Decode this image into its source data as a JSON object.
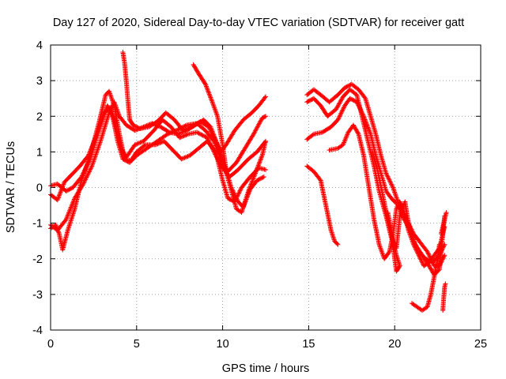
{
  "chart_data": {
    "type": "scatter",
    "title": "Day 127 of 2020, Sidereal Day-to-day VTEC variation (SDTVAR) for receiver gatt",
    "xlabel": "GPS time / hours",
    "ylabel": "SDTVAR / TECUs",
    "xlim": [
      0,
      25
    ],
    "ylim": [
      -4,
      4
    ],
    "xticks": [
      "0",
      "5",
      "10",
      "15",
      "20",
      "25"
    ],
    "yticks": [
      "-4",
      "-3",
      "-2",
      "-1",
      "0",
      "1",
      "2",
      "3",
      "4"
    ],
    "grid": true,
    "marker": "+",
    "series_color": "#ff0000",
    "tracks": [
      [
        [
          0.0,
          -1.15
        ],
        [
          0.3,
          -1.05
        ],
        [
          0.5,
          -1.3
        ],
        [
          0.7,
          -1.75
        ],
        [
          1.0,
          -1.2
        ],
        [
          1.4,
          -0.6
        ],
        [
          1.8,
          0.2
        ],
        [
          2.3,
          0.9
        ],
        [
          2.8,
          1.8
        ],
        [
          3.2,
          2.6
        ],
        [
          3.4,
          2.7
        ],
        [
          3.7,
          2.3
        ],
        [
          4.0,
          1.5
        ],
        [
          4.3,
          0.8
        ],
        [
          4.7,
          0.75
        ],
        [
          5.0,
          0.9
        ],
        [
          5.6,
          1.1
        ],
        [
          6.2,
          1.3
        ],
        [
          6.8,
          1.5
        ],
        [
          7.3,
          1.6
        ],
        [
          7.9,
          1.75
        ],
        [
          8.5,
          1.8
        ],
        [
          9.0,
          1.6
        ],
        [
          9.5,
          1.3
        ],
        [
          9.9,
          0.8
        ],
        [
          10.3,
          0.45
        ],
        [
          10.8,
          0.7
        ],
        [
          11.3,
          1.1
        ],
        [
          11.8,
          1.5
        ],
        [
          12.3,
          1.95
        ],
        [
          12.5,
          2.0
        ]
      ],
      [
        [
          0.0,
          -0.2
        ],
        [
          0.4,
          -0.35
        ],
        [
          0.8,
          0.15
        ],
        [
          1.2,
          0.35
        ],
        [
          1.7,
          0.6
        ],
        [
          2.2,
          0.9
        ],
        [
          2.7,
          1.5
        ],
        [
          3.1,
          2.1
        ],
        [
          3.5,
          2.25
        ],
        [
          3.8,
          1.7
        ],
        [
          4.1,
          1.1
        ],
        [
          4.4,
          0.85
        ],
        [
          4.9,
          1.2
        ],
        [
          5.4,
          1.3
        ],
        [
          6.0,
          1.6
        ],
        [
          6.5,
          1.9
        ],
        [
          7.0,
          1.7
        ],
        [
          7.5,
          1.4
        ],
        [
          8.0,
          1.5
        ],
        [
          8.5,
          1.55
        ],
        [
          9.1,
          1.4
        ],
        [
          9.6,
          0.9
        ],
        [
          10.0,
          0.55
        ],
        [
          10.4,
          0.3
        ],
        [
          10.9,
          0.5
        ],
        [
          11.5,
          0.8
        ],
        [
          12.0,
          1.0
        ],
        [
          12.5,
          1.3
        ]
      ],
      [
        [
          0.0,
          0.05
        ],
        [
          0.4,
          0.1
        ],
        [
          0.9,
          -0.1
        ],
        [
          1.3,
          0.0
        ],
        [
          1.8,
          0.3
        ],
        [
          2.3,
          0.8
        ],
        [
          2.8,
          1.6
        ],
        [
          3.3,
          2.3
        ],
        [
          3.6,
          2.0
        ],
        [
          3.9,
          1.3
        ],
        [
          4.2,
          0.8
        ],
        [
          4.6,
          0.7
        ],
        [
          5.0,
          1.0
        ],
        [
          5.5,
          1.2
        ],
        [
          6.1,
          1.2
        ],
        [
          6.6,
          1.3
        ],
        [
          7.1,
          1.05
        ],
        [
          7.6,
          0.8
        ],
        [
          8.1,
          0.9
        ],
        [
          8.6,
          1.1
        ],
        [
          9.1,
          1.3
        ],
        [
          9.6,
          1.0
        ],
        [
          10.0,
          0.2
        ],
        [
          10.3,
          -0.3
        ],
        [
          10.7,
          -0.4
        ],
        [
          11.1,
          0.0
        ],
        [
          11.6,
          0.3
        ],
        [
          12.1,
          0.55
        ],
        [
          12.5,
          0.5
        ]
      ],
      [
        [
          0.0,
          -1.05
        ],
        [
          0.4,
          -1.2
        ],
        [
          0.9,
          -0.9
        ],
        [
          1.4,
          -0.3
        ],
        [
          1.9,
          0.1
        ],
        [
          2.4,
          0.6
        ],
        [
          2.9,
          1.3
        ],
        [
          3.4,
          2.1
        ],
        [
          3.7,
          2.4
        ],
        [
          4.0,
          2.0
        ],
        [
          4.4,
          1.75
        ],
        [
          4.9,
          1.6
        ],
        [
          5.4,
          1.7
        ],
        [
          5.9,
          1.8
        ],
        [
          6.4,
          1.7
        ],
        [
          6.9,
          1.55
        ],
        [
          7.4,
          1.5
        ],
        [
          7.9,
          1.6
        ],
        [
          8.4,
          1.75
        ],
        [
          8.9,
          1.9
        ],
        [
          9.3,
          1.7
        ],
        [
          9.7,
          1.2
        ],
        [
          10.1,
          0.6
        ],
        [
          10.4,
          0.1
        ],
        [
          10.8,
          -0.6
        ],
        [
          11.1,
          -0.7
        ],
        [
          11.5,
          -0.1
        ],
        [
          11.9,
          0.4
        ],
        [
          12.3,
          0.9
        ],
        [
          12.5,
          1.3
        ]
      ],
      [
        [
          4.2,
          3.8
        ],
        [
          4.3,
          3.5
        ],
        [
          4.4,
          3.0
        ],
        [
          4.5,
          2.4
        ],
        [
          4.6,
          1.9
        ],
        [
          4.8,
          1.75
        ],
        [
          5.2,
          1.65
        ],
        [
          5.7,
          1.7
        ],
        [
          6.2,
          1.85
        ],
        [
          6.7,
          2.1
        ],
        [
          7.2,
          1.9
        ],
        [
          7.7,
          1.6
        ],
        [
          8.2,
          1.7
        ],
        [
          8.7,
          1.85
        ],
        [
          9.2,
          1.7
        ],
        [
          9.6,
          1.3
        ],
        [
          9.9,
          1.0
        ],
        [
          10.2,
          1.2
        ],
        [
          10.7,
          1.6
        ],
        [
          11.2,
          1.9
        ],
        [
          11.7,
          2.1
        ],
        [
          12.1,
          2.3
        ],
        [
          12.5,
          2.55
        ]
      ],
      [
        [
          8.3,
          3.45
        ],
        [
          8.6,
          3.2
        ],
        [
          9.0,
          2.9
        ],
        [
          9.4,
          2.4
        ],
        [
          9.7,
          2.0
        ],
        [
          10.0,
          1.2
        ],
        [
          10.2,
          0.5
        ],
        [
          10.5,
          0.0
        ],
        [
          10.9,
          -0.4
        ],
        [
          11.2,
          -0.55
        ],
        [
          11.6,
          -0.05
        ],
        [
          12.0,
          0.2
        ],
        [
          12.4,
          0.3
        ]
      ],
      [
        [
          14.9,
          2.6
        ],
        [
          15.3,
          2.75
        ],
        [
          15.7,
          2.6
        ],
        [
          16.2,
          2.4
        ],
        [
          16.7,
          2.6
        ],
        [
          17.1,
          2.8
        ],
        [
          17.5,
          2.9
        ],
        [
          17.9,
          2.75
        ],
        [
          18.3,
          2.5
        ],
        [
          18.6,
          2.0
        ],
        [
          18.9,
          1.5
        ],
        [
          19.2,
          0.9
        ],
        [
          19.5,
          0.4
        ],
        [
          19.9,
          0.0
        ],
        [
          20.3,
          -0.55
        ],
        [
          20.7,
          -0.9
        ],
        [
          21.1,
          -1.3
        ],
        [
          21.5,
          -1.55
        ],
        [
          21.9,
          -1.8
        ],
        [
          22.3,
          -2.2
        ],
        [
          22.6,
          -2.2
        ],
        [
          22.9,
          -1.9
        ]
      ],
      [
        [
          14.9,
          2.4
        ],
        [
          15.3,
          2.5
        ],
        [
          15.7,
          2.3
        ],
        [
          16.1,
          2.0
        ],
        [
          16.6,
          2.2
        ],
        [
          17.0,
          2.55
        ],
        [
          17.4,
          2.75
        ],
        [
          17.8,
          2.6
        ],
        [
          18.1,
          2.0
        ],
        [
          18.4,
          1.4
        ],
        [
          18.8,
          0.6
        ],
        [
          19.1,
          -0.1
        ],
        [
          19.5,
          -0.8
        ],
        [
          19.8,
          -1.4
        ],
        [
          20.1,
          -1.7
        ],
        [
          20.3,
          -0.8
        ],
        [
          20.6,
          -0.4
        ],
        [
          20.8,
          -1.0
        ],
        [
          21.1,
          -1.5
        ],
        [
          21.4,
          -1.8
        ],
        [
          21.8,
          -2.0
        ],
        [
          22.2,
          -2.1
        ],
        [
          22.6,
          -1.9
        ],
        [
          22.9,
          -1.6
        ]
      ],
      [
        [
          14.9,
          1.35
        ],
        [
          15.3,
          1.5
        ],
        [
          15.8,
          1.55
        ],
        [
          16.3,
          1.7
        ],
        [
          16.7,
          1.9
        ],
        [
          17.1,
          2.3
        ],
        [
          17.4,
          2.5
        ],
        [
          17.8,
          2.4
        ],
        [
          18.2,
          2.0
        ],
        [
          18.6,
          1.5
        ],
        [
          18.9,
          0.9
        ],
        [
          19.2,
          0.4
        ],
        [
          19.5,
          -0.1
        ],
        [
          19.8,
          -0.3
        ],
        [
          20.2,
          -0.5
        ],
        [
          20.5,
          -0.85
        ],
        [
          20.9,
          -1.2
        ],
        [
          21.2,
          -1.6
        ],
        [
          21.6,
          -1.9
        ],
        [
          22.0,
          -2.2
        ],
        [
          22.3,
          -2.45
        ],
        [
          22.6,
          -2.3
        ],
        [
          22.9,
          -0.8
        ]
      ],
      [
        [
          14.9,
          0.6
        ],
        [
          15.3,
          0.45
        ],
        [
          15.7,
          0.2
        ],
        [
          16.0,
          -0.5
        ],
        [
          16.3,
          -1.2
        ],
        [
          16.5,
          -1.5
        ],
        [
          16.7,
          -1.6
        ]
      ],
      [
        [
          16.2,
          1.05
        ],
        [
          16.7,
          1.1
        ],
        [
          17.0,
          1.2
        ],
        [
          17.3,
          1.55
        ],
        [
          17.6,
          1.75
        ],
        [
          17.9,
          1.5
        ],
        [
          18.2,
          0.9
        ],
        [
          18.5,
          0.0
        ],
        [
          18.8,
          -0.9
        ],
        [
          19.1,
          -1.6
        ],
        [
          19.4,
          -2.0
        ],
        [
          19.7,
          -1.8
        ],
        [
          19.9,
          -1.3
        ],
        [
          20.1,
          -0.6
        ],
        [
          20.3,
          -0.4
        ],
        [
          20.5,
          -0.6
        ],
        [
          20.8,
          -1.2
        ],
        [
          21.1,
          -1.6
        ],
        [
          21.4,
          -1.9
        ],
        [
          21.7,
          -2.2
        ],
        [
          22.0,
          -2.1
        ],
        [
          22.3,
          -1.9
        ],
        [
          22.6,
          -1.7
        ],
        [
          22.9,
          -1.1
        ]
      ],
      [
        [
          18.7,
          1.0
        ],
        [
          19.0,
          0.5
        ],
        [
          19.3,
          -0.2
        ],
        [
          19.6,
          -0.9
        ],
        [
          19.9,
          -1.5
        ],
        [
          20.1,
          -1.9
        ],
        [
          20.3,
          -2.2
        ],
        [
          20.1,
          -2.35
        ],
        [
          20.0,
          -2.0
        ],
        [
          19.8,
          -1.2
        ],
        [
          19.6,
          -0.7
        ]
      ],
      [
        [
          21.0,
          -3.25
        ],
        [
          21.3,
          -3.35
        ],
        [
          21.6,
          -3.45
        ],
        [
          21.9,
          -3.35
        ],
        [
          22.1,
          -3.0
        ],
        [
          22.3,
          -2.5
        ],
        [
          22.5,
          -2.0
        ],
        [
          22.6,
          -1.6
        ]
      ],
      [
        [
          22.8,
          -3.45
        ],
        [
          22.85,
          -3.1
        ],
        [
          22.9,
          -2.8
        ],
        [
          22.95,
          -2.7
        ]
      ],
      [
        [
          22.7,
          -1.3
        ],
        [
          22.8,
          -1.1
        ],
        [
          22.9,
          -0.9
        ],
        [
          23.0,
          -0.7
        ]
      ]
    ]
  }
}
